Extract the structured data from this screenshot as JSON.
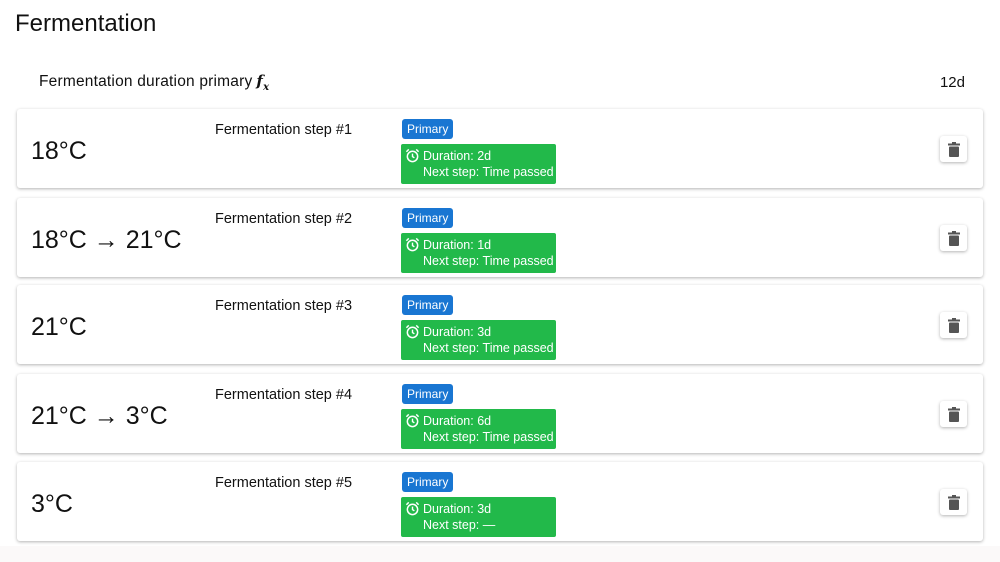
{
  "title": "Fermentation",
  "duration": {
    "label": "Fermentation duration primary",
    "icon": "function-icon",
    "value": "12d"
  },
  "colors": {
    "badge": "#1976d2",
    "info": "#22b94a"
  },
  "steps": [
    {
      "temp": "18°C",
      "name": "Fermentation step #1",
      "badge": "Primary",
      "duration": "Duration: 2d",
      "next": "Next step: Time passed"
    },
    {
      "temp": "18°C → 21°C",
      "name": "Fermentation step #2",
      "badge": "Primary",
      "duration": "Duration: 1d",
      "next": "Next step: Time passed"
    },
    {
      "temp": "21°C",
      "name": "Fermentation step #3",
      "badge": "Primary",
      "duration": "Duration: 3d",
      "next": "Next step: Time passed"
    },
    {
      "temp": "21°C → 3°C",
      "name": "Fermentation step #4",
      "badge": "Primary",
      "duration": "Duration: 6d",
      "next": "Next step: Time passed"
    },
    {
      "temp": "3°C",
      "name": "Fermentation step #5",
      "badge": "Primary",
      "duration": "Duration: 3d",
      "next": "Next step: —"
    }
  ]
}
